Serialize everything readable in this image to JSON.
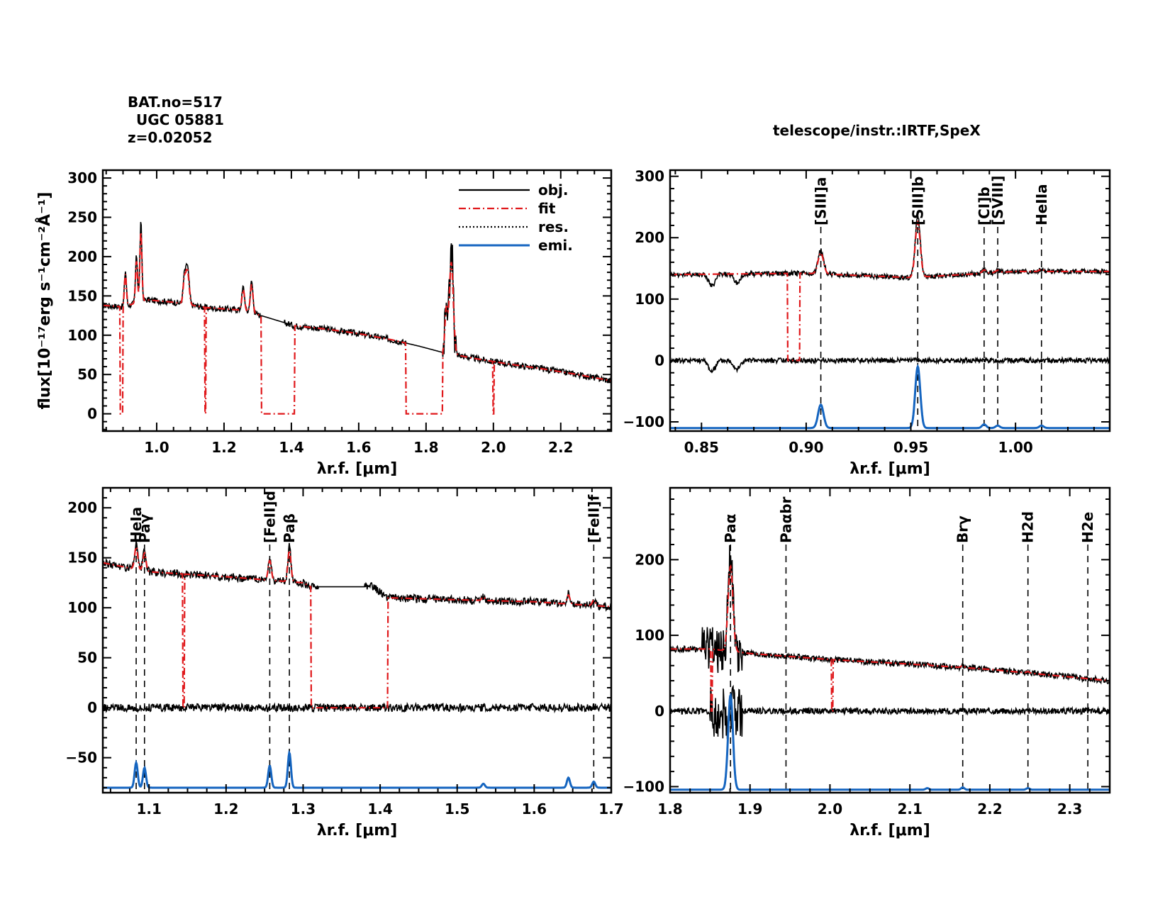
{
  "header": {
    "bat_no": "BAT.no=517",
    "galaxy": "UGC 05881",
    "redshift": "z=0.02052",
    "instrument": "telescope/instr.:IRTF,SpeX"
  },
  "colors": {
    "obj": "#000000",
    "fit": "#e0191c",
    "res": "#000000",
    "emi": "#1565c0"
  },
  "chart_data": [
    {
      "id": "full",
      "type": "line",
      "title": "",
      "xlabel": "λr.f. [μm]",
      "ylabel": "flux[10⁻¹⁷erg s⁻¹cm⁻²Å⁻¹]",
      "xlim": [
        0.84,
        2.35
      ],
      "ylim": [
        -22,
        310
      ],
      "xticks": [
        1.0,
        1.2,
        1.4,
        1.6,
        1.8,
        2.0,
        2.2
      ],
      "xticklabels": [
        "1.0",
        "1.2",
        "1.4",
        "1.6",
        "1.8",
        "2.0",
        "2.2"
      ],
      "yticks": [
        0,
        50,
        100,
        150,
        200,
        250,
        300
      ],
      "yticklabels": [
        "0",
        "50",
        "100",
        "150",
        "200",
        "250",
        "300"
      ],
      "legend": {
        "position": "top-right",
        "entries": [
          {
            "label": "obj.",
            "style": "obj"
          },
          {
            "label": "fit",
            "style": "fit"
          },
          {
            "label": "res.",
            "style": "res"
          },
          {
            "label": "emi.",
            "style": "emi"
          }
        ]
      },
      "continuum": [
        [
          0.84,
          138
        ],
        [
          0.9,
          136
        ],
        [
          0.97,
          145
        ],
        [
          1.05,
          142
        ],
        [
          1.15,
          135
        ],
        [
          1.25,
          132
        ],
        [
          1.31,
          125
        ],
        [
          1.41,
          112
        ],
        [
          1.5,
          108
        ],
        [
          1.6,
          102
        ],
        [
          1.7,
          94
        ],
        [
          1.78,
          86
        ],
        [
          1.85,
          78
        ],
        [
          1.95,
          70
        ],
        [
          2.05,
          63
        ],
        [
          2.15,
          57
        ],
        [
          2.25,
          50
        ],
        [
          2.35,
          42
        ]
      ],
      "obj_gaps": [
        [
          1.31,
          1.38
        ],
        [
          1.74,
          1.85
        ]
      ],
      "fit_gaps": [
        [
          0.895,
          0.9
        ],
        [
          1.31,
          1.41
        ],
        [
          1.74,
          1.85
        ]
      ],
      "fit_drops": [
        0.893,
        1.145,
        2.0
      ],
      "emission": [
        [
          0.953,
          100,
          0.003
        ],
        [
          0.907,
          45,
          0.003
        ],
        [
          0.94,
          60,
          0.003
        ],
        [
          1.083,
          40,
          0.004
        ],
        [
          1.094,
          30,
          0.004
        ],
        [
          1.257,
          30,
          0.004
        ],
        [
          1.282,
          40,
          0.004
        ],
        [
          1.875,
          130,
          0.006
        ],
        [
          1.86,
          60,
          0.004
        ],
        [
          1.09,
          25,
          0.003
        ]
      ],
      "show_res": false,
      "show_emi": false
    },
    {
      "id": "zoom1",
      "type": "line",
      "xlabel": "λr.f. [μm]",
      "xlim": [
        0.835,
        1.045
      ],
      "ylim": [
        -115,
        310
      ],
      "xticks": [
        0.85,
        0.9,
        0.95,
        1.0
      ],
      "xticklabels": [
        "0.85",
        "0.90",
        "0.95",
        "1.00"
      ],
      "yticks": [
        -100,
        0,
        100,
        200,
        300
      ],
      "yticklabels": [
        "−100",
        "0",
        "100",
        "200",
        "300"
      ],
      "lines": [
        {
          "label": "[SIII]a",
          "x": 0.907
        },
        {
          "label": "[SIII]b",
          "x": 0.9533
        },
        {
          "label": "[CI]b",
          "x": 0.985
        },
        {
          "label": "[SVIII]",
          "x": 0.9915
        },
        {
          "label": "HeIIa",
          "x": 1.0124
        }
      ],
      "continuum": [
        [
          0.835,
          140
        ],
        [
          0.9,
          142
        ],
        [
          0.95,
          135
        ],
        [
          1.0,
          145
        ],
        [
          1.045,
          145
        ]
      ],
      "obj_gaps": [],
      "fit_gaps": [
        [
          0.891,
          0.897
        ]
      ],
      "fit_drops": [],
      "emission": [
        [
          0.907,
          38,
          0.0013
        ],
        [
          0.9533,
          100,
          0.0012
        ],
        [
          0.985,
          6,
          0.001
        ],
        [
          0.9915,
          4,
          0.001
        ],
        [
          1.0124,
          4,
          0.001
        ]
      ],
      "absorption": [
        [
          0.855,
          20,
          0.0015
        ],
        [
          0.867,
          15,
          0.0015
        ]
      ],
      "res_offset": 0,
      "emi_baseline": -110,
      "show_res": true,
      "show_emi": true
    },
    {
      "id": "zoom2",
      "type": "line",
      "xlabel": "λr.f. [μm]",
      "xlim": [
        1.04,
        1.7
      ],
      "ylim": [
        -85,
        220
      ],
      "xticks": [
        1.1,
        1.2,
        1.3,
        1.4,
        1.5,
        1.6,
        1.7
      ],
      "xticklabels": [
        "1.1",
        "1.2",
        "1.3",
        "1.4",
        "1.5",
        "1.6",
        "1.7"
      ],
      "yticks": [
        -50,
        0,
        50,
        100,
        150,
        200
      ],
      "yticklabels": [
        "−50",
        "0",
        "50",
        "100",
        "150",
        "200"
      ],
      "lines": [
        {
          "label": "HeIa",
          "x": 1.0833
        },
        {
          "label": "Paγ",
          "x": 1.0941
        },
        {
          "label": "[FeII]d",
          "x": 1.2567
        },
        {
          "label": "Paβ",
          "x": 1.2822
        },
        {
          "label": "[FeII]f",
          "x": 1.6773
        }
      ],
      "continuum": [
        [
          1.04,
          145
        ],
        [
          1.1,
          136
        ],
        [
          1.2,
          131
        ],
        [
          1.3,
          125
        ],
        [
          1.31,
          121
        ],
        [
          1.39,
          121
        ],
        [
          1.41,
          110
        ],
        [
          1.5,
          108
        ],
        [
          1.6,
          106
        ],
        [
          1.7,
          101
        ]
      ],
      "obj_gaps": [
        [
          1.32,
          1.38
        ]
      ],
      "fit_gaps": [
        [
          1.31,
          1.41
        ]
      ],
      "fit_drops": [
        1.145
      ],
      "emission": [
        [
          1.0833,
          25,
          0.002
        ],
        [
          1.0941,
          20,
          0.002
        ],
        [
          1.2567,
          22,
          0.002
        ],
        [
          1.2822,
          35,
          0.002
        ],
        [
          1.6444,
          10,
          0.002
        ],
        [
          1.6773,
          6,
          0.002
        ],
        [
          1.534,
          4,
          0.002
        ]
      ],
      "absorption": [],
      "res_offset": 0,
      "emi_baseline": -80,
      "show_res": true,
      "show_emi": true
    },
    {
      "id": "zoom3",
      "type": "line",
      "xlabel": "λr.f. [μm]",
      "xlim": [
        1.8,
        2.35
      ],
      "ylim": [
        -108,
        295
      ],
      "xticks": [
        1.8,
        1.9,
        2.0,
        2.1,
        2.2,
        2.3
      ],
      "xticklabels": [
        "1.8",
        "1.9",
        "2.0",
        "2.1",
        "2.2",
        "2.3"
      ],
      "yticks": [
        -100,
        0,
        100,
        200
      ],
      "yticklabels": [
        "−100",
        "0",
        "100",
        "200"
      ],
      "lines": [
        {
          "label": "Paα",
          "x": 1.8756
        },
        {
          "label": "Paαbr",
          "x": 1.945
        },
        {
          "label": "Brγ",
          "x": 2.1661
        },
        {
          "label": "H2d",
          "x": 2.2477
        },
        {
          "label": "H2e",
          "x": 2.3226
        }
      ],
      "continuum": [
        [
          1.85,
          82
        ],
        [
          1.9,
          76
        ],
        [
          2.0,
          68
        ],
        [
          2.1,
          62
        ],
        [
          2.2,
          55
        ],
        [
          2.3,
          45
        ],
        [
          2.35,
          40
        ]
      ],
      "obj_gaps": [],
      "fit_gaps": [],
      "fit_drops": [
        2.003,
        1.852
      ],
      "emission": [
        [
          1.8756,
          125,
          0.003
        ],
        [
          2.1661,
          3,
          0.002
        ],
        [
          2.2477,
          2,
          0.002
        ],
        [
          2.1218,
          2,
          0.002
        ]
      ],
      "absorption": [],
      "res_offset": 0,
      "emi_baseline": -104,
      "show_res": true,
      "show_emi": true
    }
  ]
}
